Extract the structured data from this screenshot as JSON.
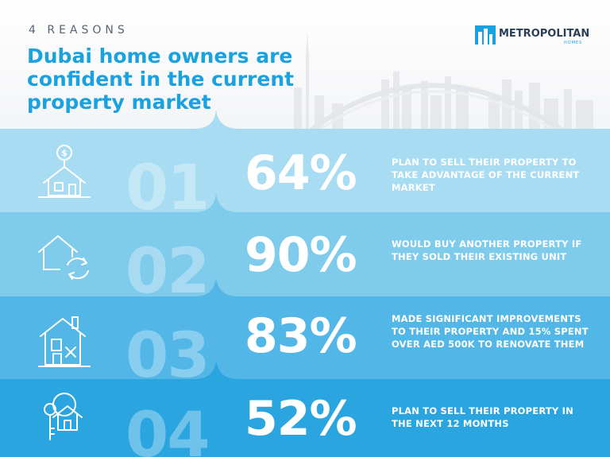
{
  "header": {
    "eyebrow": "4 REASONS",
    "title": "Dubai home owners are confident in the current property market"
  },
  "logo": {
    "name": "METROPOLITAN",
    "sub": "HOMES"
  },
  "colors": {
    "title_blue": "#1aa2e0",
    "band_1": "#a8dcf2",
    "band_2": "#7fcbec",
    "band_3": "#52b7e6",
    "band_4": "#2ba5df"
  },
  "reasons": [
    {
      "number": "01",
      "percent": "64%",
      "text": "PLAN TO SELL THEIR PROPERTY TO TAKE ADVANTAGE OF THE CURRENT MARKET",
      "icon": "house-money-icon"
    },
    {
      "number": "02",
      "percent": "90%",
      "text": "WOULD BUY ANOTHER PROPERTY IF THEY SOLD THEIR EXISTING UNIT",
      "icon": "house-exchange-icon"
    },
    {
      "number": "03",
      "percent": "83%",
      "text": "MADE SIGNIFICANT IMPROVEMENTS TO THEIR PROPERTY AND 15% SPENT OVER AED 500K TO RENOVATE THEM",
      "icon": "house-renovation-icon"
    },
    {
      "number": "04",
      "percent": "52%",
      "text": "PLAN TO SELL THEIR PROPERTY IN THE NEXT 12 MONTHS",
      "icon": "house-key-icon"
    }
  ]
}
